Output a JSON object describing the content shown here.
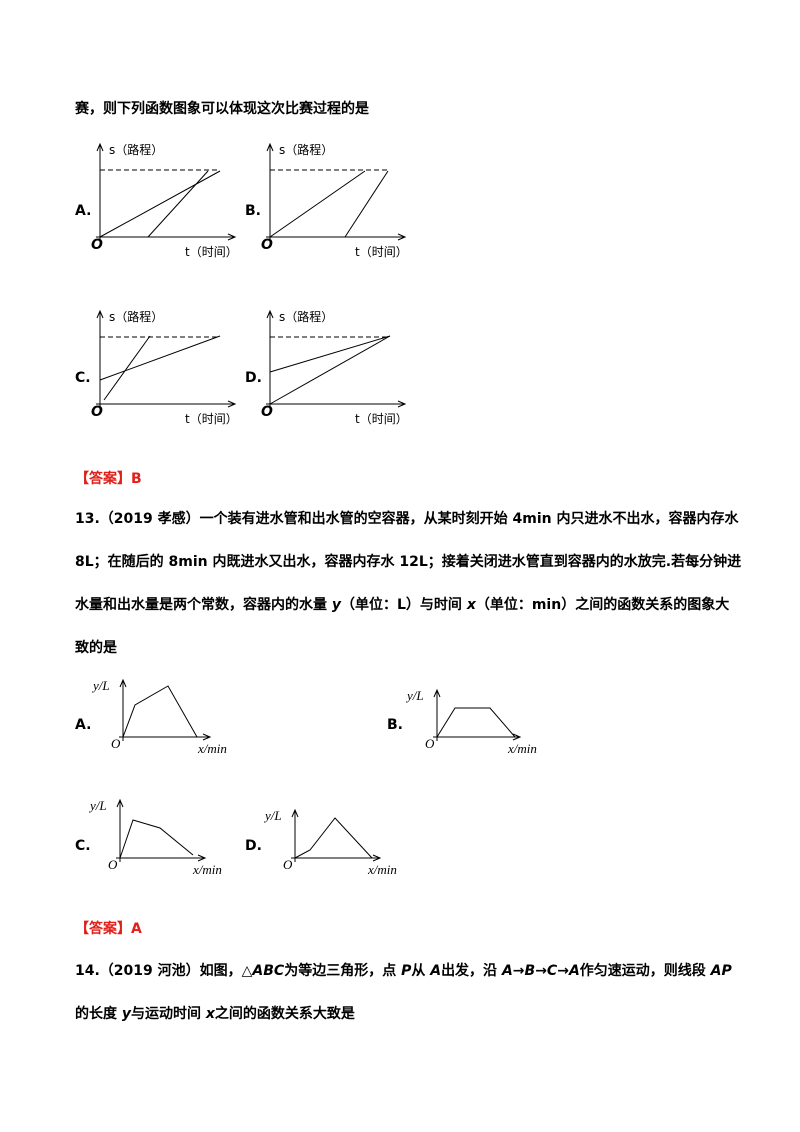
{
  "intro": "赛，则下列函数图象可以体现这次比赛过程的是",
  "q12": {
    "options": [
      {
        "label": "A.",
        "y_axis": "s（路程）",
        "x_axis": "t（时间）",
        "origin": "O"
      },
      {
        "label": "B.",
        "y_axis": "s（路程）",
        "x_axis": "t（时间）",
        "origin": "O"
      },
      {
        "label": "C.",
        "y_axis": "s（路程）",
        "x_axis": "t（时间）",
        "origin": "O"
      },
      {
        "label": "D.",
        "y_axis": "s（路程）",
        "x_axis": "t（时间）",
        "origin": "O"
      }
    ]
  },
  "answer12": {
    "bracket": "【答案】",
    "value": "B"
  },
  "q13": {
    "lines": [
      [
        "13.（2019 孝感）一个装有进水管和出水管的空容器，从某时刻开始 4min 内只进水不出水，容器内存水"
      ],
      [
        "8L；在随后的 8min 内既进水又出水，容器内存水 12L；接着关闭进水管直到容器内的水放完.若每分钟进"
      ],
      [
        "水量和出水量是两个常数，容器内的水量 ",
        "y",
        "（单位：L）与时间 ",
        "x",
        "（单位：min）之间的函数关系的图象大"
      ],
      [
        "致的是"
      ]
    ],
    "options": [
      {
        "label": "A.",
        "y_axis": "y/L",
        "x_axis": "x/min",
        "origin": "O"
      },
      {
        "label": "B.",
        "y_axis": "y/L",
        "x_axis": "x/min",
        "origin": "O"
      },
      {
        "label": "C.",
        "y_axis": "y/L",
        "x_axis": "x/min",
        "origin": "O"
      },
      {
        "label": "D.",
        "y_axis": "y/L",
        "x_axis": "x/min",
        "origin": "O"
      }
    ]
  },
  "answer13": {
    "bracket": "【答案】",
    "value": "A"
  },
  "q14": {
    "lines": [
      [
        "14.（2019 河池）如图，",
        "△",
        "ABC",
        "为等边三角形，点 ",
        "P",
        "从 ",
        "A",
        "出发，沿 ",
        "A",
        "→",
        "B",
        "→",
        "C",
        "→",
        "A",
        "作匀速运动，则线段 ",
        "AP"
      ],
      [
        "的长度 ",
        "y",
        "与运动时间 ",
        "x",
        "之间的函数关系大致是"
      ]
    ]
  }
}
